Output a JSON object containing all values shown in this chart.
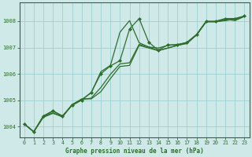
{
  "title": "Graphe pression niveau de la mer (hPa)",
  "background_color": "#cfe8e8",
  "grid_color": "#9ecfcf",
  "line_color": "#2d6e2d",
  "x_ticks": [
    0,
    1,
    2,
    3,
    4,
    5,
    6,
    7,
    8,
    9,
    10,
    11,
    12,
    13,
    14,
    15,
    16,
    17,
    18,
    19,
    20,
    21,
    22,
    23
  ],
  "y_ticks": [
    1004,
    1005,
    1006,
    1007,
    1008
  ],
  "ylim": [
    1003.6,
    1008.7
  ],
  "xlim": [
    -0.5,
    23.5
  ],
  "series": [
    [
      1004.1,
      1003.8,
      1004.4,
      1004.6,
      1004.4,
      1004.8,
      1005.0,
      1005.3,
      1006.0,
      1006.3,
      1006.5,
      1007.7,
      1008.1,
      1007.2,
      1006.9,
      1007.1,
      1007.1,
      1007.2,
      1007.5,
      1008.0,
      1008.0,
      1008.1,
      1008.1,
      1008.2
    ],
    [
      1004.1,
      1003.8,
      1004.35,
      1004.5,
      1004.38,
      1004.82,
      1005.05,
      1005.05,
      1005.32,
      1005.82,
      1006.28,
      1006.32,
      1007.08,
      1006.98,
      1006.88,
      1006.98,
      1007.08,
      1007.15,
      1007.48,
      1007.98,
      1007.98,
      1008.02,
      1008.08,
      1008.18
    ],
    [
      1004.1,
      1003.8,
      1004.38,
      1004.52,
      1004.36,
      1004.84,
      1005.02,
      1005.08,
      1005.48,
      1005.98,
      1006.38,
      1006.42,
      1007.12,
      1007.02,
      1006.88,
      1006.98,
      1007.08,
      1007.18,
      1007.48,
      1007.98,
      1007.98,
      1008.04,
      1008.08,
      1008.18
    ],
    [
      1004.1,
      1003.8,
      1004.4,
      1004.58,
      1004.4,
      1004.82,
      1005.02,
      1005.28,
      1006.08,
      1006.32,
      1007.58,
      1008.02,
      1007.18,
      1007.02,
      1006.98,
      1007.08,
      1007.12,
      1007.18,
      1007.48,
      1007.98,
      1007.98,
      1008.08,
      1008.02,
      1008.18
    ]
  ],
  "marker_series": 0,
  "figsize": [
    3.2,
    2.0
  ],
  "dpi": 100
}
